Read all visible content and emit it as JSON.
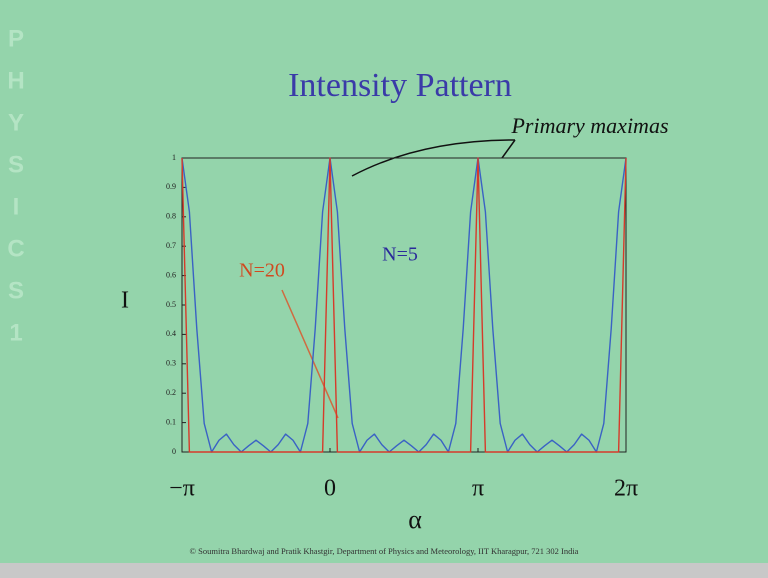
{
  "chart_data": {
    "type": "line",
    "title": "Intensity Pattern",
    "xlabel": "α",
    "ylabel": "I",
    "annotations": [
      "Primary maximas"
    ],
    "side_text": [
      "P",
      "H",
      "Y",
      "S",
      "I",
      "C",
      "S",
      "1"
    ],
    "footer": "© Soumitra Bhardwaj and Pratik Khastgir, Department of Physics and Meteorology, IIT Kharagpur, 721 302 India",
    "xlim": [
      -1,
      2
    ],
    "xticks": [
      {
        "value": -1,
        "label": "−π"
      },
      0,
      {
        "value": 1,
        "label": "π"
      },
      {
        "value": 2,
        "label": "2π"
      }
    ],
    "ylim": [
      0,
      1
    ],
    "yticks": [
      0,
      0.1,
      0.2,
      0.3,
      0.4,
      0.5,
      0.6,
      0.7,
      0.8,
      0.9,
      1
    ],
    "x": [
      -1,
      -0.95,
      -0.9,
      -0.85,
      -0.8,
      -0.75,
      -0.7,
      -0.65,
      -0.6,
      -0.55,
      -0.5,
      -0.45,
      -0.4,
      -0.35,
      -0.3,
      -0.25,
      -0.2,
      -0.15,
      -0.1,
      -0.05,
      0,
      0.05,
      0.1,
      0.15,
      0.2,
      0.25,
      0.3,
      0.35,
      0.4,
      0.45,
      0.5,
      0.55,
      0.6,
      0.65,
      0.7,
      0.75,
      0.8,
      0.85,
      0.9,
      0.95,
      1,
      1.05,
      1.1,
      1.15,
      1.2,
      1.25,
      1.3,
      1.35,
      1.4,
      1.45,
      1.5,
      1.55,
      1.6,
      1.65,
      1.7,
      1.75,
      1.8,
      1.85,
      1.9,
      1.95,
      2
    ],
    "series": [
      {
        "name": "N=5",
        "color": "#3a62c4",
        "values": [
          1,
          0.817,
          0.419,
          0.097,
          0,
          0.04,
          0.061,
          0.025,
          0,
          0.021,
          0.04,
          0.021,
          0,
          0.025,
          0.061,
          0.04,
          0,
          0.097,
          0.419,
          0.817,
          1,
          0.817,
          0.419,
          0.097,
          0,
          0.04,
          0.061,
          0.025,
          0,
          0.021,
          0.04,
          0.021,
          0,
          0.025,
          0.061,
          0.04,
          0,
          0.097,
          0.419,
          0.817,
          1,
          0.817,
          0.419,
          0.097,
          0,
          0.04,
          0.061,
          0.025,
          0,
          0.021,
          0.04,
          0.021,
          0,
          0.025,
          0.061,
          0.04,
          0,
          0.097,
          0.419,
          0.817,
          1
        ]
      },
      {
        "name": "N=20",
        "color": "#d63a2a",
        "values": [
          1,
          0,
          0,
          0,
          0,
          0,
          0,
          0,
          0,
          0,
          0,
          0,
          0,
          0,
          0,
          0,
          0,
          0,
          0,
          0,
          1,
          0,
          0,
          0,
          0,
          0,
          0,
          0,
          0,
          0,
          0,
          0,
          0,
          0,
          0,
          0,
          0,
          0,
          0,
          0,
          1,
          0,
          0,
          0,
          0,
          0,
          0,
          0,
          0,
          0,
          0,
          0,
          0,
          0,
          0,
          0,
          0,
          0,
          0,
          0,
          1
        ]
      }
    ]
  }
}
